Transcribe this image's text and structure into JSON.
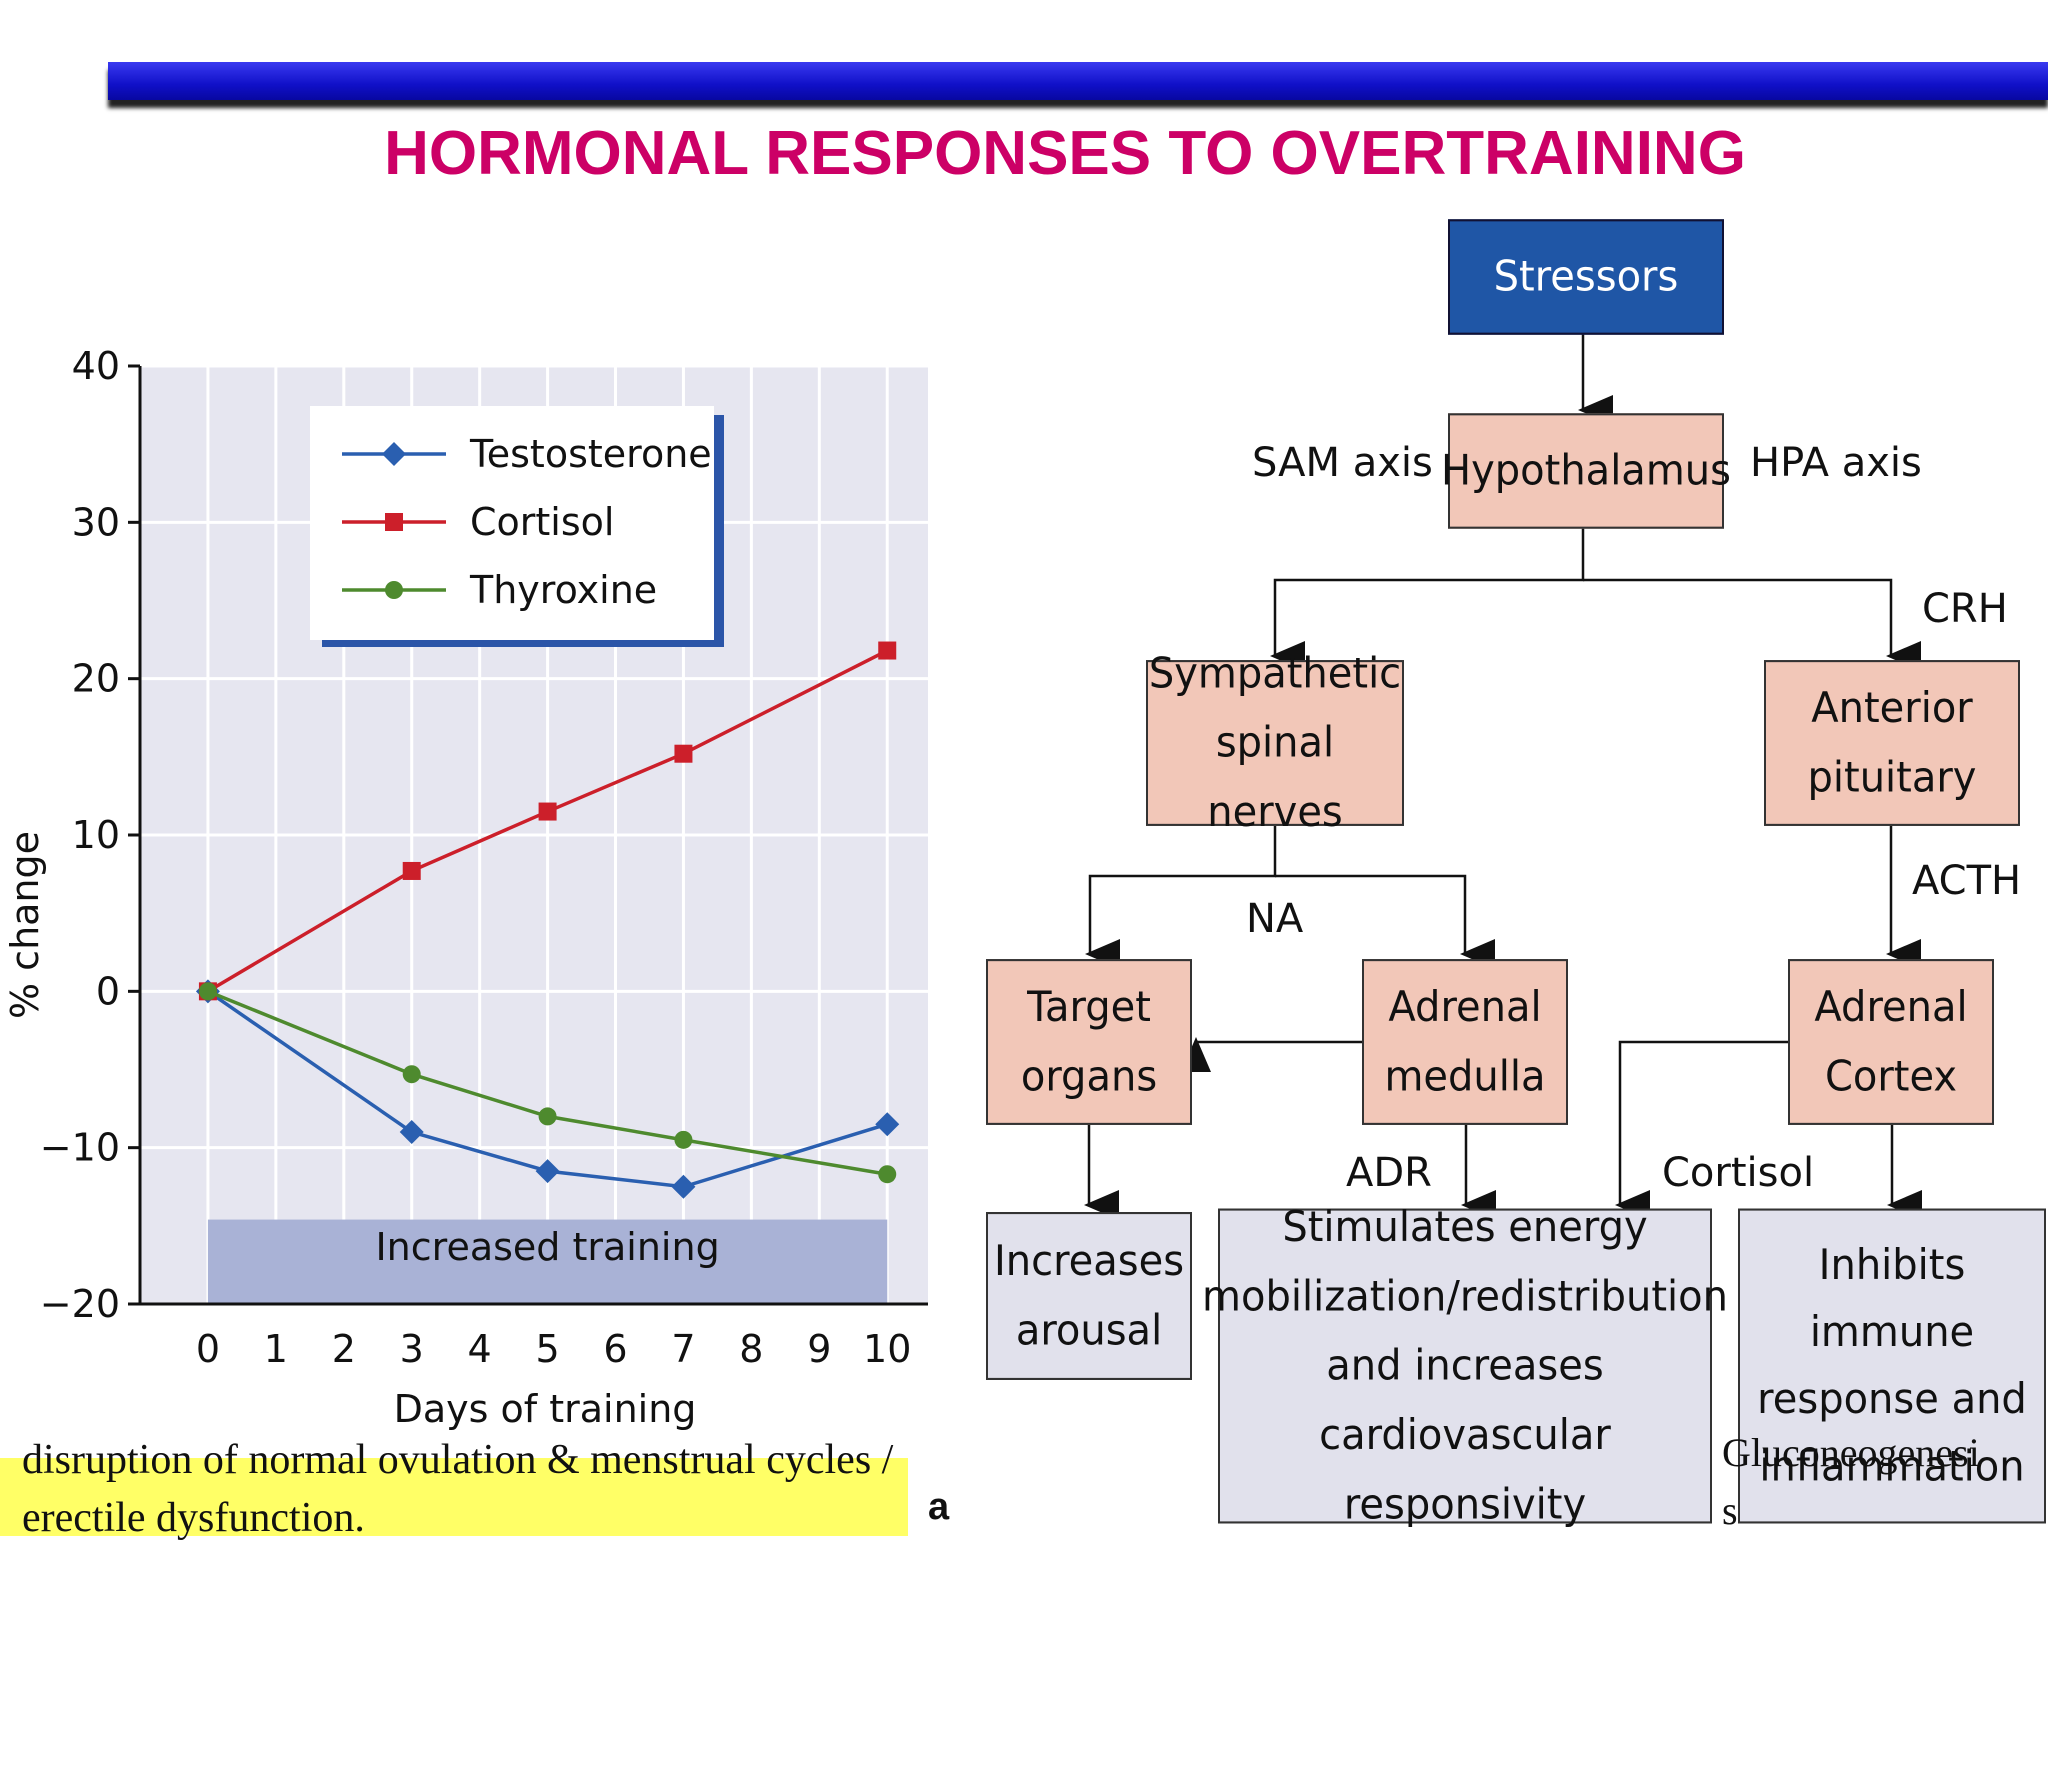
{
  "title": "HORMONAL RESPONSES TO OVERTRAINING",
  "chart_data": {
    "type": "line",
    "x": [
      0,
      3,
      5,
      7,
      10
    ],
    "xticks": [
      "0",
      "1",
      "2",
      "3",
      "4",
      "5",
      "6",
      "7",
      "8",
      "9",
      "10"
    ],
    "yticks": [
      "40",
      "30",
      "20",
      "10",
      "0",
      "−10",
      "−20"
    ],
    "xlabel": "Days of training",
    "ylabel": "% change",
    "ylim": [
      -20,
      40
    ],
    "xlim": [
      -1,
      10.6
    ],
    "legend_position": "top-left",
    "grid": true,
    "band": {
      "label": "Increased training",
      "from": 0,
      "to": 10
    },
    "series": [
      {
        "name": "Testosterone",
        "color": "#2a5fb0",
        "marker": "diamond",
        "values": [
          0,
          -9,
          -11.5,
          -12.5,
          -8.5
        ]
      },
      {
        "name": "Cortisol",
        "color": "#cc1f2a",
        "marker": "square",
        "values": [
          0,
          7.7,
          11.5,
          15.2,
          21.8
        ]
      },
      {
        "name": "Thyroxine",
        "color": "#4e8a2e",
        "marker": "circle",
        "values": [
          0,
          -5.3,
          -8,
          -9.5,
          -11.7
        ]
      }
    ]
  },
  "diagram": {
    "stressors": "Stressors",
    "hypothalamus": "Hypothalamus",
    "sam_axis": "SAM axis",
    "hpa_axis": "HPA axis",
    "crh": "CRH",
    "sympathetic": "Sympathetic\nspinal nerves",
    "anterior_pituitary": "Anterior\npituitary",
    "acth": "ACTH",
    "na": "NA",
    "target_organs": "Target\norgans",
    "adrenal_medulla": "Adrenal\nmedulla",
    "adrenal_cortex": "Adrenal\nCortex",
    "adr": "ADR",
    "cortisol": "Cortisol",
    "increases_arousal": "Increases\narousal",
    "stimulates_energy": "Stimulates energy\nmobilization/redistribution\nand increases\ncardiovascular responsivity",
    "inhibits_immune": "Inhibits immune\nresponse and\ninflammation"
  },
  "notes": {
    "line1": "disruption of normal ovulation & menstrual cycles /",
    "line2": "erectile dysfunction.",
    "gluconeogenesis": "Gluconeogenesi\ns",
    "stray_glyph": "a"
  }
}
